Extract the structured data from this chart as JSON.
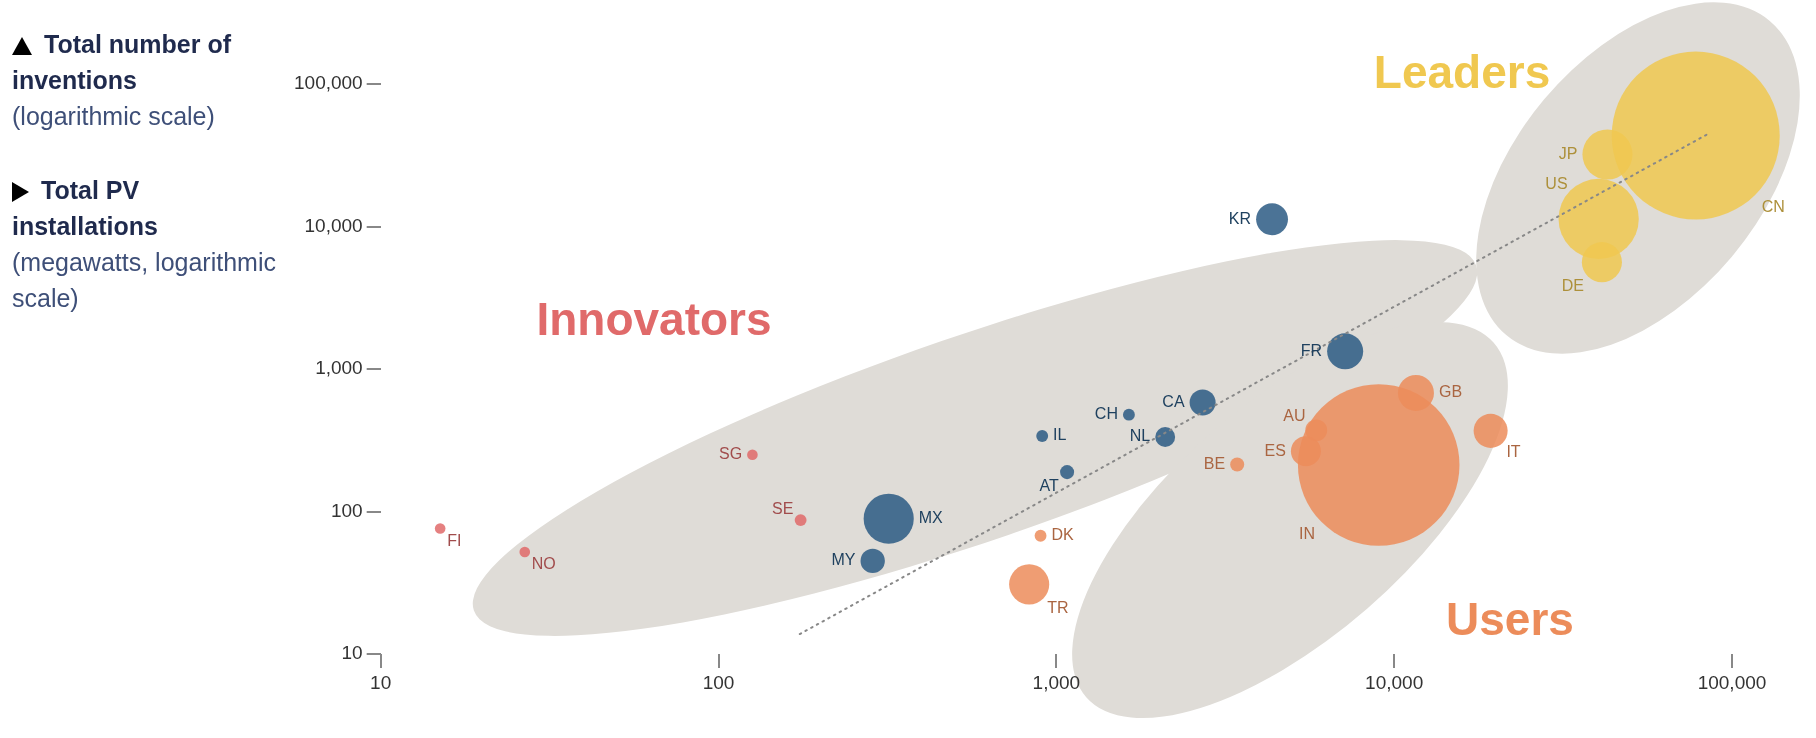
{
  "chart_data": {
    "type": "bubble",
    "xlabel": "Total PV installations (megawatts, logarithmic scale)",
    "ylabel": "Total number of inventions (logarithmic scale)",
    "log": "xy",
    "grid": false,
    "legend": false,
    "xlim": [
      10,
      100000
    ],
    "ylim": [
      10,
      100000
    ],
    "xticks": [
      10,
      100,
      {
        "value": 1000,
        "label": "1,000"
      },
      {
        "value": 10000,
        "label": "10,000"
      },
      {
        "value": 100000,
        "label": "100,000"
      }
    ],
    "yticks": [
      10,
      100,
      {
        "value": 1000,
        "label": "1,000"
      },
      {
        "value": 10000,
        "label": "10,000"
      },
      {
        "value": 100000,
        "label": "100,000"
      }
    ],
    "series": [
      {
        "name": "Innovators",
        "color": "#e06a6a",
        "x": [
          15,
          26.7,
          126,
          175
        ],
        "values": [
          76,
          52,
          250,
          87
        ],
        "sizes": [
          0.004,
          0.004,
          0.004,
          0.005
        ],
        "value_labels": [
          "FI",
          "NO",
          "SG",
          "SE"
        ]
      },
      {
        "color": "#2b5a84",
        "x": [
          4350,
          7160,
          2710,
          1640,
          908,
          2100,
          1076,
          319,
          286
        ],
        "values": [
          11250,
          1330,
          582,
          478,
          339,
          333,
          189,
          89,
          45
        ],
        "sizes": [
          0.036,
          0.046,
          0.024,
          0.005,
          0.005,
          0.014,
          0.007,
          0.089,
          0.021
        ],
        "value_labels": [
          "KR",
          "FR",
          "CA",
          "CH",
          "IL",
          "NL",
          "AT",
          "MX",
          "MY"
        ]
      },
      {
        "name": "Users",
        "color": "#ec8c5a",
        "x": [
          898,
          3430,
          5480,
          5880,
          9000,
          11600,
          19300,
          831
        ],
        "values": [
          67.6,
          214,
          265,
          371,
          212,
          679,
          368,
          30.8
        ],
        "sizes": [
          0.005,
          0.007,
          0.032,
          0.017,
          0.925,
          0.046,
          0.041,
          0.057
        ],
        "value_labels": [
          "DK",
          "BE",
          "ES",
          "AU",
          "IN",
          "GB",
          "IT",
          "TR"
        ]
      },
      {
        "name": "Leaders",
        "color": "#f0c850",
        "x": [
          42800,
          40300,
          41200,
          78100
        ],
        "values": [
          32000,
          11300,
          5620,
          43500
        ],
        "sizes": [
          0.089,
          0.228,
          0.057,
          1
        ],
        "value_labels": [
          "JP",
          "US",
          "DE",
          "CN"
        ]
      },
      {
        "type": "line",
        "color": "#888888",
        "line_style": "dotted",
        "marker": "none",
        "x": [
          174,
          84100
        ],
        "values": [
          13.8,
          44100
        ]
      }
    ]
  }
}
